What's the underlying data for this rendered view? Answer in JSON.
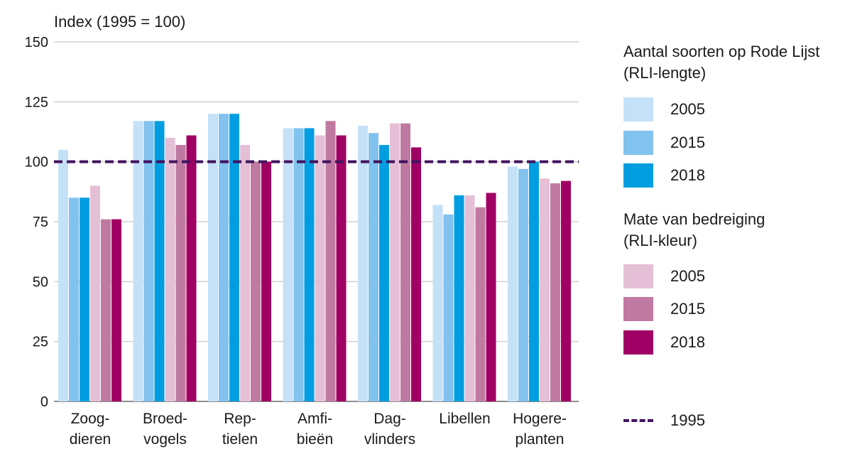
{
  "chart_data": {
    "type": "bar",
    "ylabel": "Index (1995 = 100)",
    "ylim": [
      0,
      150
    ],
    "yticks": [
      0,
      25,
      50,
      75,
      100,
      125,
      150
    ],
    "grid": true,
    "reference_line": {
      "value": 100,
      "label": "1995",
      "color": "#42145f",
      "style": "dashed"
    },
    "categories": [
      [
        "Zoog-",
        "dieren"
      ],
      [
        "Broed-",
        "vogels"
      ],
      [
        "Rep-",
        "tielen"
      ],
      [
        "Amfi-",
        "bieën"
      ],
      [
        "Dag-",
        "vlinders"
      ],
      [
        "Libellen",
        ""
      ],
      [
        "Hogere-",
        "planten"
      ]
    ],
    "series": [
      {
        "group": "Aantal soorten op Rode Lijst (RLI-lengte)",
        "name": "2005",
        "color": "#c4e1f7",
        "values": [
          105,
          117,
          120,
          114,
          115,
          82,
          98
        ]
      },
      {
        "group": "Aantal soorten op Rode Lijst (RLI-lengte)",
        "name": "2015",
        "color": "#82c2ee",
        "values": [
          85,
          117,
          120,
          114,
          112,
          78,
          97
        ]
      },
      {
        "group": "Aantal soorten op Rode Lijst (RLI-lengte)",
        "name": "2018",
        "color": "#009ee0",
        "values": [
          85,
          117,
          120,
          114,
          107,
          86,
          100
        ]
      },
      {
        "group": "Mate van bedreiging (RLI-kleur)",
        "name": "2005",
        "color": "#e5bfd5",
        "values": [
          90,
          110,
          107,
          111,
          116,
          86,
          93
        ]
      },
      {
        "group": "Mate van bedreiging (RLI-kleur)",
        "name": "2015",
        "color": "#c07aa2",
        "values": [
          76,
          107,
          100,
          117,
          116,
          81,
          91
        ]
      },
      {
        "group": "Mate van bedreiging (RLI-kleur)",
        "name": "2018",
        "color": "#a00064",
        "values": [
          76,
          111,
          100,
          111,
          106,
          87,
          92
        ]
      }
    ]
  },
  "legend": {
    "group1_title": [
      "Aantal soorten op Rode Lijst",
      "(RLI-lengte)"
    ],
    "group2_title": [
      "Mate van bedreiging",
      "(RLI-kleur)"
    ],
    "items": [
      {
        "label": "2005",
        "color": "#c4e1f7"
      },
      {
        "label": "2015",
        "color": "#82c2ee"
      },
      {
        "label": "2018",
        "color": "#009ee0"
      },
      {
        "label": "2005",
        "color": "#e5bfd5"
      },
      {
        "label": "2015",
        "color": "#c07aa2"
      },
      {
        "label": "2018",
        "color": "#a00064"
      }
    ],
    "reference_label": "1995"
  }
}
